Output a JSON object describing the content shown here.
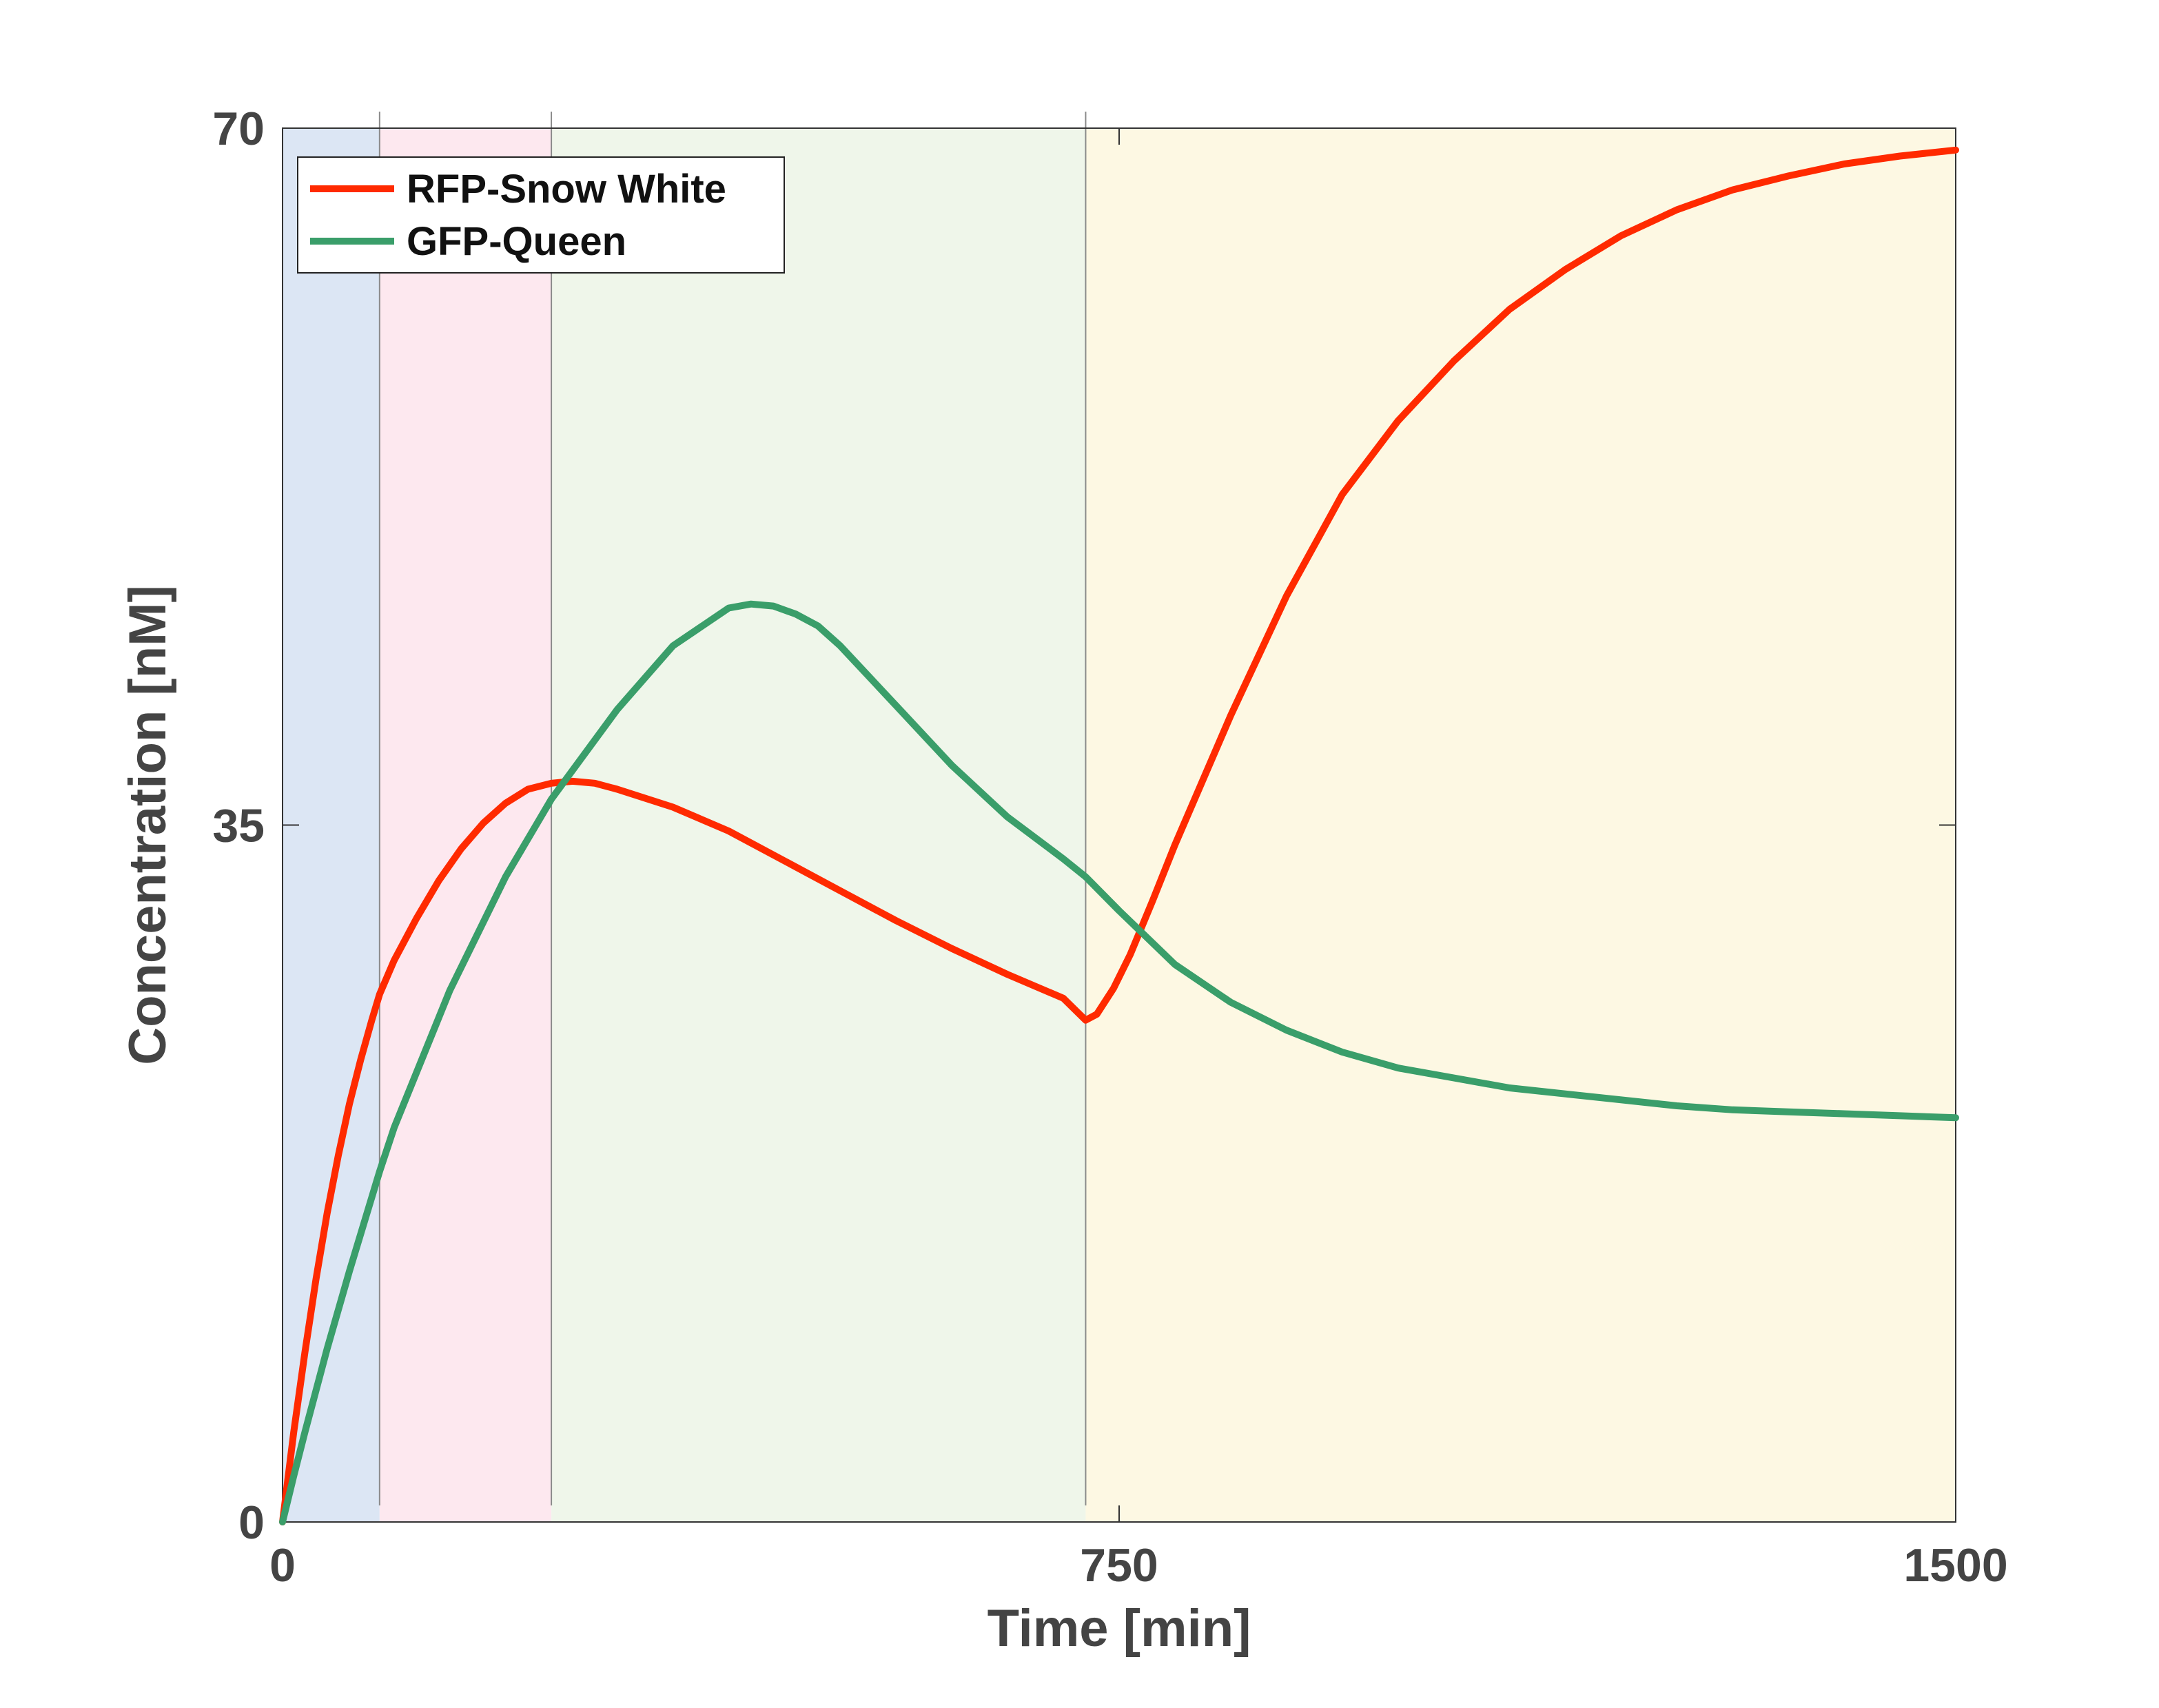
{
  "chart_data": {
    "type": "line",
    "title": "",
    "xlabel": "Time [min]",
    "ylabel": "Concentration [nM]",
    "xlim": [
      0,
      1500
    ],
    "ylim": [
      0,
      70
    ],
    "xticks": [
      0,
      750,
      1500
    ],
    "yticks": [
      0,
      35,
      70
    ],
    "xtick_labels": [
      "0",
      "750",
      "1500"
    ],
    "ytick_labels": [
      "0",
      "35",
      "70"
    ],
    "grid": false,
    "legend_position": "top-left",
    "background_bands": [
      {
        "x0": 0,
        "x1": 87,
        "color": "#dce6f4"
      },
      {
        "x0": 87,
        "x1": 241,
        "color": "#fde8ef"
      },
      {
        "x0": 241,
        "x1": 720,
        "color": "#eff6ea"
      },
      {
        "x0": 720,
        "x1": 1500,
        "color": "#fdf8e3"
      }
    ],
    "series": [
      {
        "name": "RFP-Snow White",
        "color": "#ff2a00",
        "x": [
          0,
          10,
          20,
          30,
          40,
          50,
          60,
          70,
          80,
          87,
          100,
          120,
          140,
          160,
          180,
          200,
          220,
          241,
          260,
          280,
          300,
          350,
          400,
          450,
          500,
          550,
          600,
          650,
          700,
          720,
          730,
          745,
          760,
          780,
          800,
          850,
          900,
          950,
          1000,
          1050,
          1100,
          1150,
          1200,
          1250,
          1300,
          1350,
          1400,
          1450,
          1500
        ],
        "y": [
          0,
          4.5,
          8.5,
          12.2,
          15.5,
          18.4,
          21,
          23.2,
          25.2,
          26.5,
          28.2,
          30.3,
          32.2,
          33.8,
          35.1,
          36.1,
          36.8,
          37.1,
          37.2,
          37.1,
          36.8,
          35.9,
          34.7,
          33.2,
          31.7,
          30.2,
          28.8,
          27.5,
          26.3,
          25.2,
          25.5,
          26.8,
          28.5,
          31.2,
          34,
          40.5,
          46.5,
          51.6,
          55.3,
          58.3,
          60.9,
          62.9,
          64.6,
          65.9,
          66.9,
          67.6,
          68.2,
          68.6,
          68.9
        ]
      },
      {
        "name": "GFP-Queen",
        "color": "#3a9e6a",
        "x": [
          0,
          10,
          20,
          40,
          60,
          87,
          100,
          150,
          200,
          241,
          300,
          350,
          400,
          420,
          440,
          460,
          480,
          500,
          550,
          600,
          650,
          700,
          720,
          750,
          800,
          850,
          900,
          950,
          1000,
          1050,
          1100,
          1150,
          1200,
          1250,
          1300,
          1350,
          1400,
          1450,
          1500
        ],
        "y": [
          0,
          2.3,
          4.5,
          8.7,
          12.6,
          17.6,
          19.8,
          26.7,
          32.4,
          36.3,
          40.8,
          44,
          45.9,
          46.1,
          46.0,
          45.6,
          45.0,
          44.0,
          41.0,
          38.0,
          35.4,
          33.3,
          32.4,
          30.7,
          28.0,
          26.1,
          24.7,
          23.6,
          22.8,
          22.3,
          21.8,
          21.5,
          21.2,
          20.9,
          20.7,
          20.6,
          20.5,
          20.4,
          20.3
        ]
      }
    ]
  }
}
